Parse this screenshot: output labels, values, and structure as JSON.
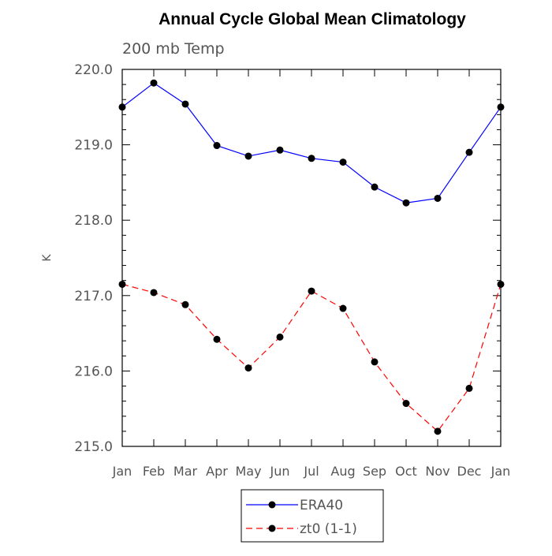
{
  "chart_data": {
    "type": "line",
    "title": "Annual Cycle Global Mean Climatology",
    "subtitle": "200 mb Temp",
    "xlabel": "",
    "ylabel": "K",
    "categories": [
      "Jan",
      "Feb",
      "Mar",
      "Apr",
      "May",
      "Jun",
      "Jul",
      "Aug",
      "Sep",
      "Oct",
      "Nov",
      "Dec",
      "Jan"
    ],
    "ylim": [
      215.0,
      220.0
    ],
    "yticks": [
      "215.0",
      "216.0",
      "217.0",
      "218.0",
      "219.0",
      "220.0"
    ],
    "grid": false,
    "legend_position": "bottom-center",
    "series": [
      {
        "name": "ERA40",
        "color": "#0000ff",
        "line_style": "solid",
        "marker": "filled-circle",
        "values": [
          219.5,
          219.82,
          219.54,
          218.99,
          218.85,
          218.93,
          218.82,
          218.77,
          218.44,
          218.23,
          218.29,
          218.9,
          219.5
        ]
      },
      {
        "name": "zt0 (1-1)",
        "color": "#ff0000",
        "line_style": "dashed",
        "marker": "filled-circle",
        "values": [
          217.15,
          217.04,
          216.88,
          216.42,
          216.04,
          216.45,
          217.06,
          216.83,
          216.12,
          215.57,
          215.2,
          215.77,
          217.15
        ]
      }
    ]
  }
}
